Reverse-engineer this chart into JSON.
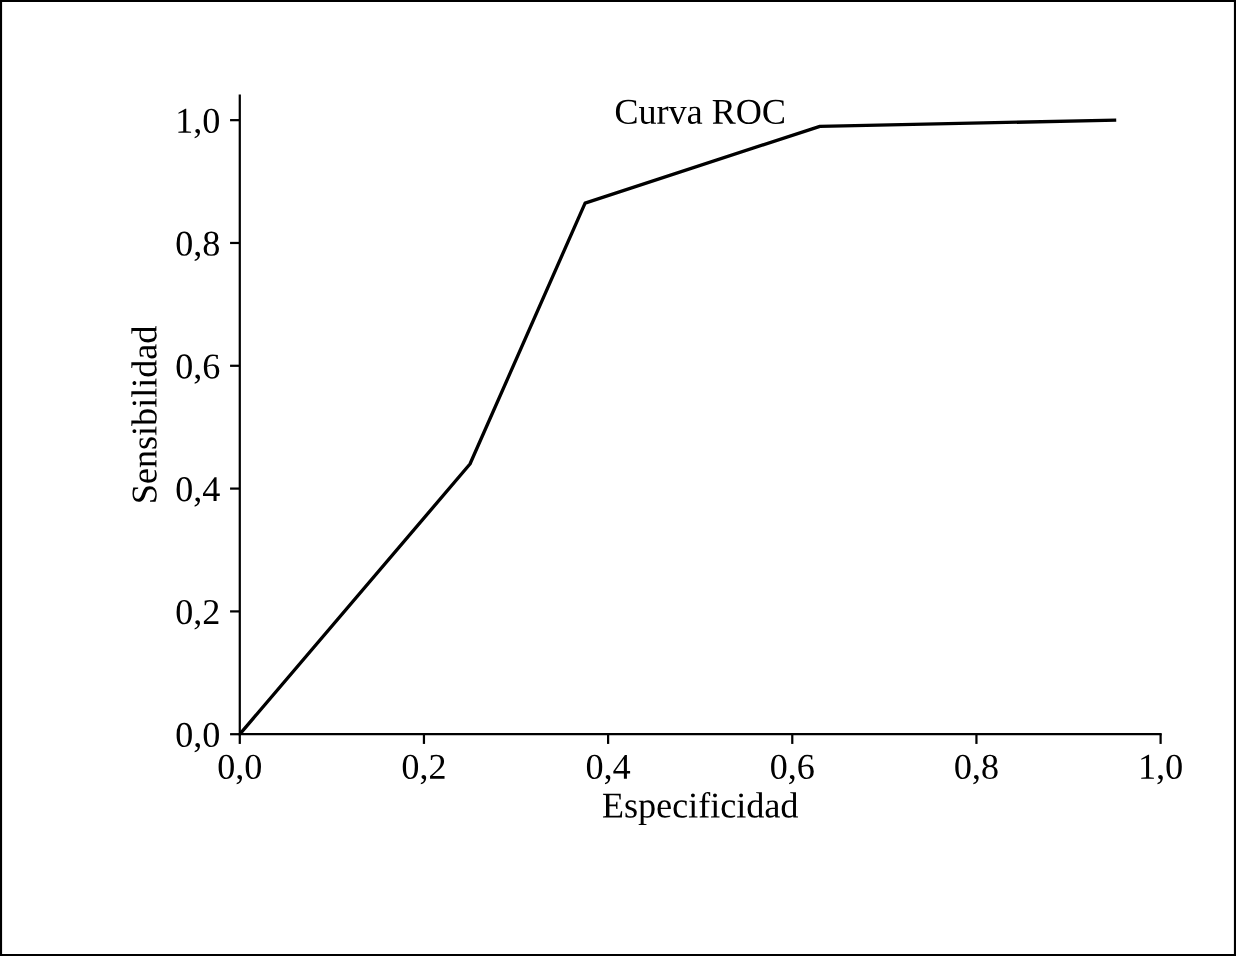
{
  "chart_data": {
    "type": "line",
    "title": "Curva ROC",
    "xlabel": "Especificidad",
    "ylabel": "Sensibilidad",
    "x": [
      0,
      0.25,
      0.375,
      0.63,
      0.95
    ],
    "series": [
      {
        "color": "#000000",
        "values": [
          0,
          0.44,
          0.865,
          0.99,
          1.0
        ]
      }
    ],
    "xlim": [
      0,
      1
    ],
    "ylim": [
      0,
      1.04
    ],
    "xticks": [
      {
        "value": 0,
        "label": "0,0"
      },
      {
        "value": 0.2,
        "label": "0,2"
      },
      {
        "value": 0.4,
        "label": "0,4"
      },
      {
        "value": 0.6,
        "label": "0,6"
      },
      {
        "value": 0.8,
        "label": "0,8"
      },
      {
        "value": 1,
        "label": "1,0"
      }
    ],
    "yticks": [
      {
        "value": 0,
        "label": "0,0"
      },
      {
        "value": 0.2,
        "label": "0,2"
      },
      {
        "value": 0.4,
        "label": "0,4"
      },
      {
        "value": 0.6,
        "label": "0,6"
      },
      {
        "value": 0.8,
        "label": "0,8"
      },
      {
        "value": 1,
        "label": "1,0"
      }
    ],
    "grid": false,
    "legend": false,
    "marker": "none",
    "line_style": "solid"
  }
}
